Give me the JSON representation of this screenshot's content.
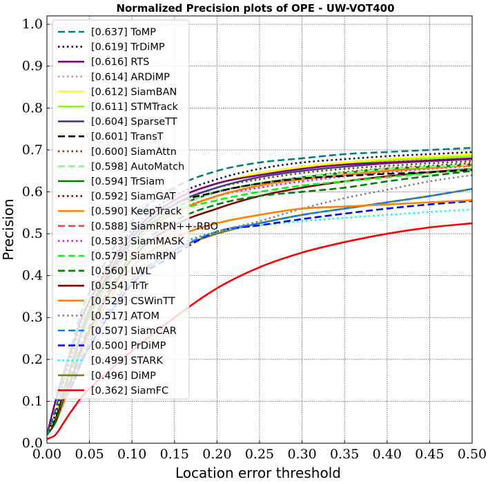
{
  "chart_data": {
    "type": "line",
    "title": "Normalized Precision plots of OPE - UW-VOT400",
    "xlabel": "Location error threshold",
    "ylabel": "Precision",
    "xlim": [
      0,
      0.5
    ],
    "ylim": [
      0,
      1.02
    ],
    "grid": true,
    "legend_position": "upper-left",
    "xticks": [
      "0.00",
      "0.05",
      "0.10",
      "0.15",
      "0.20",
      "0.25",
      "0.30",
      "0.35",
      "0.40",
      "0.45",
      "0.50"
    ],
    "yticks": [
      "0.0",
      "0.1",
      "0.2",
      "0.3",
      "0.4",
      "0.5",
      "0.6",
      "0.7",
      "0.8",
      "0.9",
      "1.0"
    ],
    "x": [
      0,
      0.01,
      0.02,
      0.03,
      0.05,
      0.1,
      0.15,
      0.2,
      0.25,
      0.3,
      0.35,
      0.4,
      0.45,
      0.5
    ],
    "series": [
      {
        "name": "ToMP",
        "label": "[0.637] ToMP",
        "color": "#008080",
        "dash": "dashed",
        "values": [
          0.02,
          0.08,
          0.16,
          0.24,
          0.36,
          0.53,
          0.61,
          0.65,
          0.67,
          0.68,
          0.69,
          0.695,
          0.7,
          0.705
        ]
      },
      {
        "name": "TrDiMP",
        "label": "[0.619] TrDiMP",
        "color": "#000080",
        "dash": "dotted",
        "values": [
          0.02,
          0.07,
          0.15,
          0.22,
          0.34,
          0.51,
          0.59,
          0.63,
          0.655,
          0.67,
          0.678,
          0.685,
          0.69,
          0.695
        ]
      },
      {
        "name": "RTS",
        "label": "[0.616] RTS",
        "color": "#800080",
        "dash": "solid",
        "values": [
          0.02,
          0.1,
          0.17,
          0.23,
          0.34,
          0.5,
          0.58,
          0.62,
          0.64,
          0.655,
          0.665,
          0.67,
          0.675,
          0.68
        ]
      },
      {
        "name": "ARDiMP",
        "label": "[0.614] ARDiMP",
        "color": "#ff8080",
        "dash": "dotted",
        "values": [
          0.02,
          0.07,
          0.14,
          0.21,
          0.33,
          0.5,
          0.58,
          0.62,
          0.64,
          0.655,
          0.665,
          0.672,
          0.677,
          0.68
        ]
      },
      {
        "name": "SiamBAN",
        "label": "[0.612] SiamBAN",
        "color": "#ffff00",
        "dash": "solid",
        "values": [
          0.02,
          0.07,
          0.14,
          0.21,
          0.33,
          0.5,
          0.58,
          0.62,
          0.645,
          0.66,
          0.67,
          0.678,
          0.684,
          0.69
        ]
      },
      {
        "name": "STMTrack",
        "label": "[0.611] STMTrack",
        "color": "#80ff00",
        "dash": "solid",
        "values": [
          0.02,
          0.07,
          0.14,
          0.21,
          0.33,
          0.5,
          0.58,
          0.62,
          0.64,
          0.655,
          0.667,
          0.675,
          0.68,
          0.685
        ]
      },
      {
        "name": "SparseTT",
        "label": "[0.604] SparseTT",
        "color": "#404080",
        "dash": "solid",
        "values": [
          0.02,
          0.07,
          0.14,
          0.2,
          0.32,
          0.49,
          0.57,
          0.61,
          0.635,
          0.65,
          0.66,
          0.668,
          0.673,
          0.678
        ]
      },
      {
        "name": "TransT",
        "label": "[0.601] TransT",
        "color": "#000000",
        "dash": "dashed",
        "values": [
          0.02,
          0.06,
          0.13,
          0.2,
          0.32,
          0.49,
          0.57,
          0.6,
          0.62,
          0.632,
          0.638,
          0.643,
          0.647,
          0.652
        ]
      },
      {
        "name": "SiamAttn",
        "label": "[0.600] SiamAttn",
        "color": "#804000",
        "dash": "dotted",
        "values": [
          0.02,
          0.06,
          0.13,
          0.2,
          0.32,
          0.49,
          0.57,
          0.61,
          0.63,
          0.645,
          0.655,
          0.662,
          0.668,
          0.673
        ]
      },
      {
        "name": "AutoMatch",
        "label": "[0.598] AutoMatch",
        "color": "#80ff80",
        "dash": "dashed",
        "values": [
          0.02,
          0.06,
          0.13,
          0.2,
          0.32,
          0.49,
          0.56,
          0.6,
          0.62,
          0.635,
          0.645,
          0.655,
          0.66,
          0.665
        ]
      },
      {
        "name": "TrSiam",
        "label": "[0.594] TrSiam",
        "color": "#008000",
        "dash": "solid",
        "values": [
          0.02,
          0.06,
          0.13,
          0.19,
          0.31,
          0.48,
          0.56,
          0.6,
          0.62,
          0.635,
          0.645,
          0.655,
          0.66,
          0.665
        ]
      },
      {
        "name": "SiamGAT",
        "label": "[0.592] SiamGAT",
        "color": "#800000",
        "dash": "dotted",
        "values": [
          0.02,
          0.06,
          0.13,
          0.19,
          0.31,
          0.48,
          0.56,
          0.6,
          0.62,
          0.635,
          0.647,
          0.656,
          0.662,
          0.668
        ]
      },
      {
        "name": "KeepTrack",
        "label": "[0.590] KeepTrack",
        "color": "#ff8000",
        "dash": "solid",
        "values": [
          0.02,
          0.06,
          0.13,
          0.19,
          0.31,
          0.48,
          0.55,
          0.59,
          0.615,
          0.63,
          0.64,
          0.65,
          0.657,
          0.664
        ]
      },
      {
        "name": "SiamRPN++-RBO",
        "label": "[0.588] SiamRPN++-RBO",
        "color": "#ff4040",
        "dash": "dashed",
        "values": [
          0.02,
          0.06,
          0.12,
          0.19,
          0.31,
          0.48,
          0.55,
          0.59,
          0.615,
          0.63,
          0.64,
          0.65,
          0.657,
          0.663
        ]
      },
      {
        "name": "SiamMASK",
        "label": "[0.583] SiamMASK",
        "color": "#ff00ff",
        "dash": "dotted",
        "values": [
          0.02,
          0.06,
          0.12,
          0.18,
          0.3,
          0.47,
          0.55,
          0.59,
          0.61,
          0.625,
          0.637,
          0.647,
          0.655,
          0.662
        ]
      },
      {
        "name": "SiamRPN",
        "label": "[0.579] SiamRPN",
        "color": "#00ff00",
        "dash": "dashed",
        "values": [
          0.02,
          0.06,
          0.12,
          0.18,
          0.3,
          0.47,
          0.55,
          0.58,
          0.6,
          0.615,
          0.625,
          0.635,
          0.645,
          0.655
        ]
      },
      {
        "name": "LWL",
        "label": "[0.560] LWL",
        "color": "#008000",
        "dash": "dashed",
        "values": [
          0.02,
          0.05,
          0.11,
          0.17,
          0.28,
          0.45,
          0.53,
          0.57,
          0.59,
          0.6,
          0.61,
          0.625,
          0.638,
          0.65
        ]
      },
      {
        "name": "TrTr",
        "label": "[0.554] TrTr",
        "color": "#800000",
        "dash": "solid",
        "values": [
          0.02,
          0.05,
          0.11,
          0.16,
          0.27,
          0.44,
          0.52,
          0.56,
          0.59,
          0.61,
          0.625,
          0.637,
          0.647,
          0.655
        ]
      },
      {
        "name": "CSWinTT",
        "label": "[0.529] CSWinTT",
        "color": "#ff8000",
        "dash": "solid",
        "values": [
          0.02,
          0.05,
          0.1,
          0.16,
          0.26,
          0.42,
          0.49,
          0.525,
          0.545,
          0.56,
          0.565,
          0.57,
          0.575,
          0.58
        ]
      },
      {
        "name": "ATOM",
        "label": "[0.517] ATOM",
        "color": "#808080",
        "dash": "dotted",
        "values": [
          0.02,
          0.05,
          0.1,
          0.15,
          0.25,
          0.4,
          0.47,
          0.505,
          0.53,
          0.56,
          0.585,
          0.605,
          0.625,
          0.64
        ]
      },
      {
        "name": "SiamCAR",
        "label": "[0.507] SiamCAR",
        "color": "#0080ff",
        "dash": "dashed",
        "values": [
          0.02,
          0.05,
          0.1,
          0.15,
          0.24,
          0.39,
          0.46,
          0.505,
          0.525,
          0.545,
          0.56,
          0.575,
          0.59,
          0.607
        ]
      },
      {
        "name": "PrDiMP",
        "label": "[0.500] PrDiMP",
        "color": "#0000ff",
        "dash": "dashed",
        "values": [
          0.02,
          0.05,
          0.1,
          0.14,
          0.23,
          0.38,
          0.45,
          0.505,
          0.52,
          0.535,
          0.548,
          0.56,
          0.57,
          0.578
        ]
      },
      {
        "name": "STARK",
        "label": "[0.499] STARK",
        "color": "#00ffff",
        "dash": "dotted",
        "values": [
          0.02,
          0.05,
          0.1,
          0.15,
          0.25,
          0.4,
          0.47,
          0.505,
          0.52,
          0.53,
          0.538,
          0.545,
          0.552,
          0.558
        ]
      },
      {
        "name": "DiMP",
        "label": "[0.496] DiMP",
        "color": "#808000",
        "dash": "solid",
        "values": [
          0.02,
          0.05,
          0.1,
          0.14,
          0.23,
          0.38,
          0.46,
          0.5,
          0.525,
          0.545,
          0.56,
          0.575,
          0.59,
          0.607
        ]
      },
      {
        "name": "SiamFC",
        "label": "[0.362] SiamFC",
        "color": "#ff0000",
        "dash": "solid",
        "values": [
          0.01,
          0.02,
          0.05,
          0.08,
          0.13,
          0.22,
          0.3,
          0.37,
          0.42,
          0.455,
          0.48,
          0.5,
          0.515,
          0.525
        ]
      }
    ]
  }
}
